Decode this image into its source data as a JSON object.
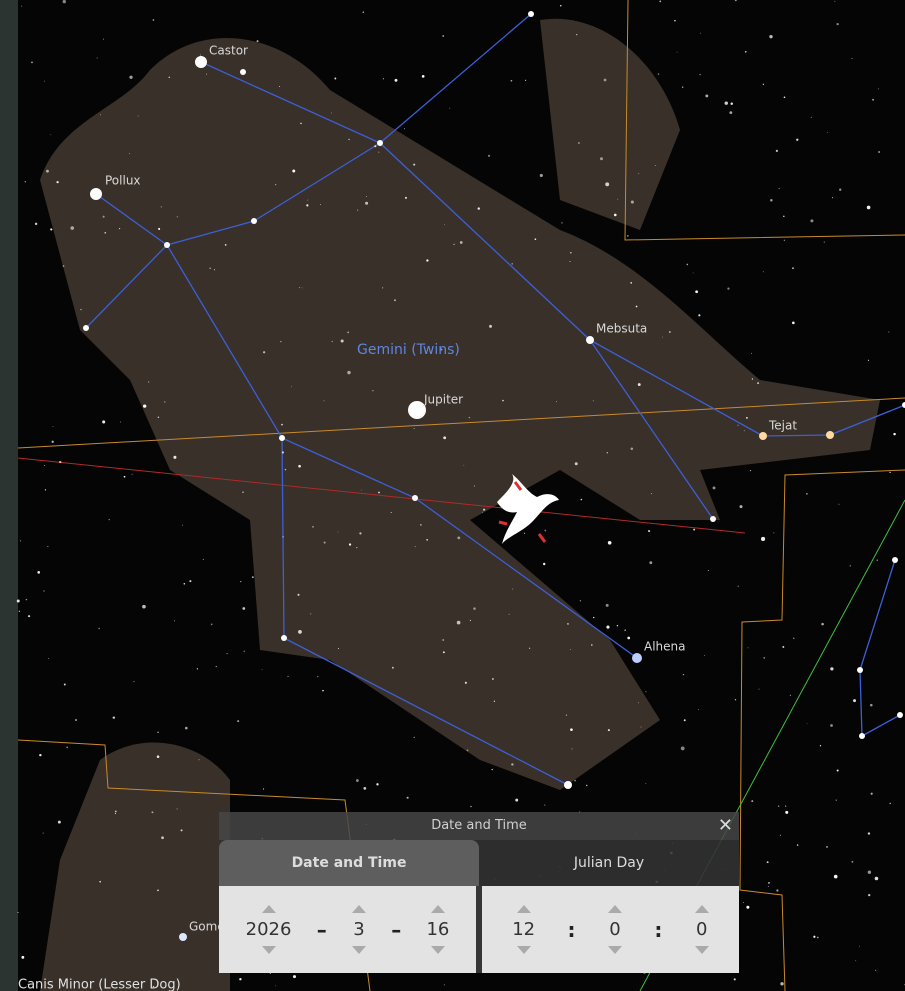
{
  "sky": {
    "stars": [
      "Castor",
      "Pollux",
      "Mebsuta",
      "Jupiter",
      "Tejat",
      "Alhena",
      "Gomeisa"
    ],
    "constellations": [
      "Gemini (Twins)",
      "Canis Minor (Lesser Dog)"
    ]
  },
  "dialog": {
    "title": "Date and Time",
    "tabs": [
      "Date and Time",
      "Julian Day"
    ],
    "date": {
      "year": 2026,
      "month": 3,
      "day": 16,
      "separator": "–"
    },
    "time": {
      "hour": 12,
      "minute": 0,
      "second": 0,
      "separator": ":"
    }
  }
}
